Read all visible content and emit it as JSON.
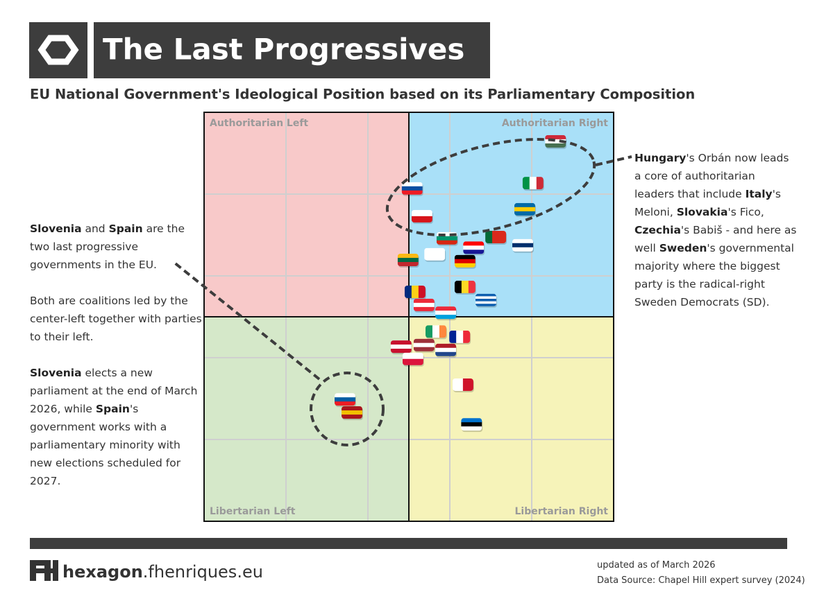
{
  "header": {
    "title": "The Last Progressives",
    "subtitle": "EU National Government's Ideological Position based on its Parliamentary Composition"
  },
  "chart_data": {
    "type": "scatter",
    "quadrants": [
      {
        "label": "Authoritarian Left",
        "color": "#f8c9c9"
      },
      {
        "label": "Authoritarian Right",
        "color": "#a9e0f8"
      },
      {
        "label": "Libertarian Left",
        "color": "#d5e8c9"
      },
      {
        "label": "Libertarian Right",
        "color": "#f6f3b9"
      }
    ],
    "xlim": [
      0,
      10
    ],
    "ylim": [
      0,
      10
    ],
    "x": [
      8.58,
      8.03,
      5.08,
      7.83,
      5.32,
      5.93,
      7.12,
      6.58,
      7.78,
      5.63,
      4.98,
      6.37,
      5.15,
      6.37,
      6.88,
      5.37,
      5.9,
      5.66,
      6.24,
      4.81,
      5.37,
      5.9,
      5.1,
      6.32,
      6.53,
      3.44,
      3.61
    ],
    "y": [
      9.29,
      8.27,
      8.14,
      7.63,
      7.46,
      6.92,
      6.95,
      6.69,
      6.75,
      6.53,
      6.39,
      6.36,
      5.61,
      5.73,
      5.41,
      5.29,
      5.1,
      4.64,
      4.51,
      4.27,
      4.31,
      4.19,
      3.97,
      3.34,
      2.37,
      2.98,
      2.66
    ],
    "flags": [
      {
        "dir": "h",
        "colors": [
          "#ce2939",
          "#ffffff",
          "#477050"
        ]
      },
      {
        "dir": "v",
        "colors": [
          "#009246",
          "#ffffff",
          "#ce2b37"
        ]
      },
      {
        "dir": "h",
        "colors": [
          "#ffffff",
          "#0b4ea2",
          "#ee1c25"
        ]
      },
      {
        "dir": "h",
        "colors": [
          "#006aa7",
          "#fecc00",
          "#006aa7"
        ]
      },
      {
        "dir": "h",
        "colors": [
          "#ffffff",
          "#d7141a"
        ]
      },
      {
        "dir": "h",
        "colors": [
          "#ffffff",
          "#00966e",
          "#d62612"
        ]
      },
      {
        "dir": "v",
        "colors": [
          "#046a38",
          "#da291c",
          "#da291c"
        ]
      },
      {
        "dir": "h",
        "colors": [
          "#ff0000",
          "#ffffff",
          "#171796"
        ]
      },
      {
        "dir": "h",
        "colors": [
          "#ffffff",
          "#002f6c",
          "#ffffff"
        ]
      },
      {
        "dir": "h",
        "colors": [
          "#ffffff"
        ]
      },
      {
        "dir": "h",
        "colors": [
          "#fdb913",
          "#006a44",
          "#c1272d"
        ]
      },
      {
        "dir": "h",
        "colors": [
          "#000000",
          "#dd0000",
          "#ffce00"
        ]
      },
      {
        "dir": "v",
        "colors": [
          "#002b7f",
          "#fcd116",
          "#ce1126"
        ]
      },
      {
        "dir": "v",
        "colors": [
          "#000000",
          "#fdda24",
          "#ef3340"
        ]
      },
      {
        "dir": "h",
        "colors": [
          "#0d5eaf",
          "#ffffff",
          "#0d5eaf",
          "#ffffff",
          "#0d5eaf"
        ]
      },
      {
        "dir": "h",
        "colors": [
          "#ed2939",
          "#ffffff",
          "#ed2939"
        ]
      },
      {
        "dir": "h",
        "colors": [
          "#ed2939",
          "#ffffff",
          "#00a1de"
        ]
      },
      {
        "dir": "v",
        "colors": [
          "#169b62",
          "#ffffff",
          "#ff883e"
        ]
      },
      {
        "dir": "v",
        "colors": [
          "#002395",
          "#ffffff",
          "#ed2939"
        ]
      },
      {
        "dir": "h",
        "colors": [
          "#c8102e",
          "#ffffff",
          "#c8102e"
        ]
      },
      {
        "dir": "h",
        "colors": [
          "#9e3039",
          "#ffffff",
          "#9e3039"
        ]
      },
      {
        "dir": "h",
        "colors": [
          "#ae1c28",
          "#ffffff",
          "#21468b"
        ]
      },
      {
        "dir": "h",
        "colors": [
          "#ffffff",
          "#dc143c"
        ]
      },
      {
        "dir": "v",
        "colors": [
          "#ffffff",
          "#cf142b"
        ]
      },
      {
        "dir": "h",
        "colors": [
          "#0072ce",
          "#000000",
          "#ffffff"
        ]
      },
      {
        "dir": "h",
        "colors": [
          "#ffffff",
          "#005da4",
          "#ed1c24"
        ]
      },
      {
        "dir": "h",
        "colors": [
          "#aa151b",
          "#f1bf00",
          "#aa151b"
        ]
      }
    ]
  },
  "annotations": {
    "left": [
      [
        {
          "text": "Slovenia",
          "bold": true
        },
        {
          "text": " and ",
          "bold": false
        },
        {
          "text": "Spain",
          "bold": true
        },
        {
          "text": " are the two last progressive governments in the EU.",
          "bold": false
        }
      ],
      [
        {
          "text": "Both are coalitions led by the center-left together with parties to their left.",
          "bold": false
        }
      ],
      [
        {
          "text": "Slovenia",
          "bold": true
        },
        {
          "text": " elects a new parliament at the end of March 2026, while ",
          "bold": false
        },
        {
          "text": "Spain",
          "bold": true
        },
        {
          "text": "'s government works with a parliamentary minority with new elections scheduled for 2027.",
          "bold": false
        }
      ]
    ],
    "right": [
      [
        {
          "text": "Hungary",
          "bold": true
        },
        {
          "text": "'s Orbán now leads a core of authoritarian leaders that include ",
          "bold": false
        },
        {
          "text": "Italy",
          "bold": true
        },
        {
          "text": "'s Meloni, ",
          "bold": false
        },
        {
          "text": "Slovakia",
          "bold": true
        },
        {
          "text": "'s Fico, ",
          "bold": false
        },
        {
          "text": "Czechia",
          "bold": true
        },
        {
          "text": "'s Babiš - and here as well ",
          "bold": false
        },
        {
          "text": "Sweden",
          "bold": true
        },
        {
          "text": "'s governmental majority where the biggest party is the radical-right Sweden Democrats (SD).",
          "bold": false
        }
      ]
    ]
  },
  "footer": {
    "brand_bold": "hexagon",
    "brand_rest": ".fhenriques.eu",
    "updated": "updated as of March 2026",
    "source": "Data Source: Chapel Hill expert survey (2024)"
  }
}
